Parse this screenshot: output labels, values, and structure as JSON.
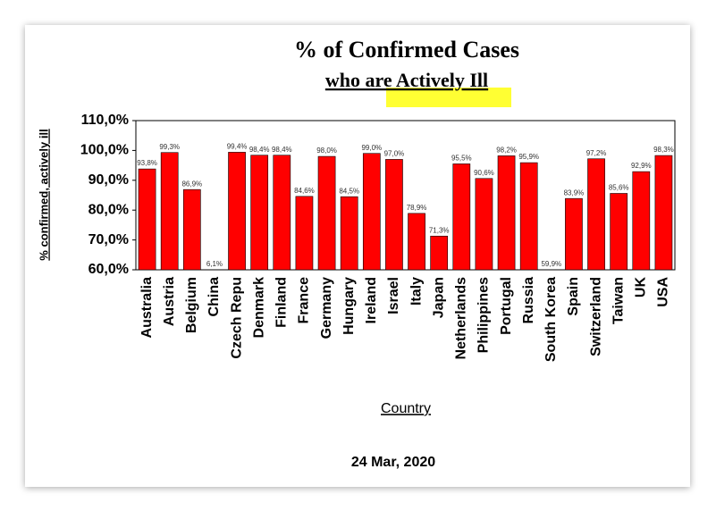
{
  "chart_data": {
    "type": "bar",
    "title": "% of Confirmed Cases",
    "subtitle": "who are Actively Ill",
    "y_label": "% confirmed, actively ill",
    "x_label": "Country",
    "date": "24 Mar, 2020",
    "categories": [
      "Australia",
      "Austria",
      "Belgium",
      "China",
      "Czech Repu",
      "Denmark",
      "Finland",
      "France",
      "Germany",
      "Hungary",
      "Ireland",
      "Israel",
      "Italy",
      "Japan",
      "Netherlands",
      "Philippines",
      "Portugal",
      "Russia",
      "South Korea",
      "Spain",
      "Switzerland",
      "Taiwan",
      "UK",
      "USA"
    ],
    "values": [
      93.8,
      99.3,
      86.9,
      6.1,
      99.4,
      98.4,
      98.4,
      84.6,
      98.0,
      84.5,
      99.0,
      97.0,
      78.9,
      71.3,
      95.5,
      90.6,
      98.2,
      95.9,
      59.9,
      83.9,
      97.2,
      85.6,
      92.9,
      98.3
    ],
    "value_labels": [
      "93,8%",
      "99,3%",
      "86,9%",
      "6,1%",
      "99,4%",
      "98,4%",
      "98,4%",
      "84,6%",
      "98,0%",
      "84,5%",
      "99,0%",
      "97,0%",
      "78,9%",
      "71,3%",
      "95,5%",
      "90,6%",
      "98,2%",
      "95,9%",
      "59,9%",
      "83,9%",
      "97,2%",
      "85,6%",
      "92,9%",
      "98,3%"
    ],
    "color": "#ff0000",
    "ylim": [
      60,
      110
    ],
    "yticks": [
      {
        "value": 60,
        "label": "60,0%"
      },
      {
        "value": 70,
        "label": "70,0%"
      },
      {
        "value": 80,
        "label": "80,0%"
      },
      {
        "value": 90,
        "label": "90,0%"
      },
      {
        "value": 100,
        "label": "100,0%"
      },
      {
        "value": 110,
        "label": "110,0%"
      }
    ],
    "grid": false
  }
}
